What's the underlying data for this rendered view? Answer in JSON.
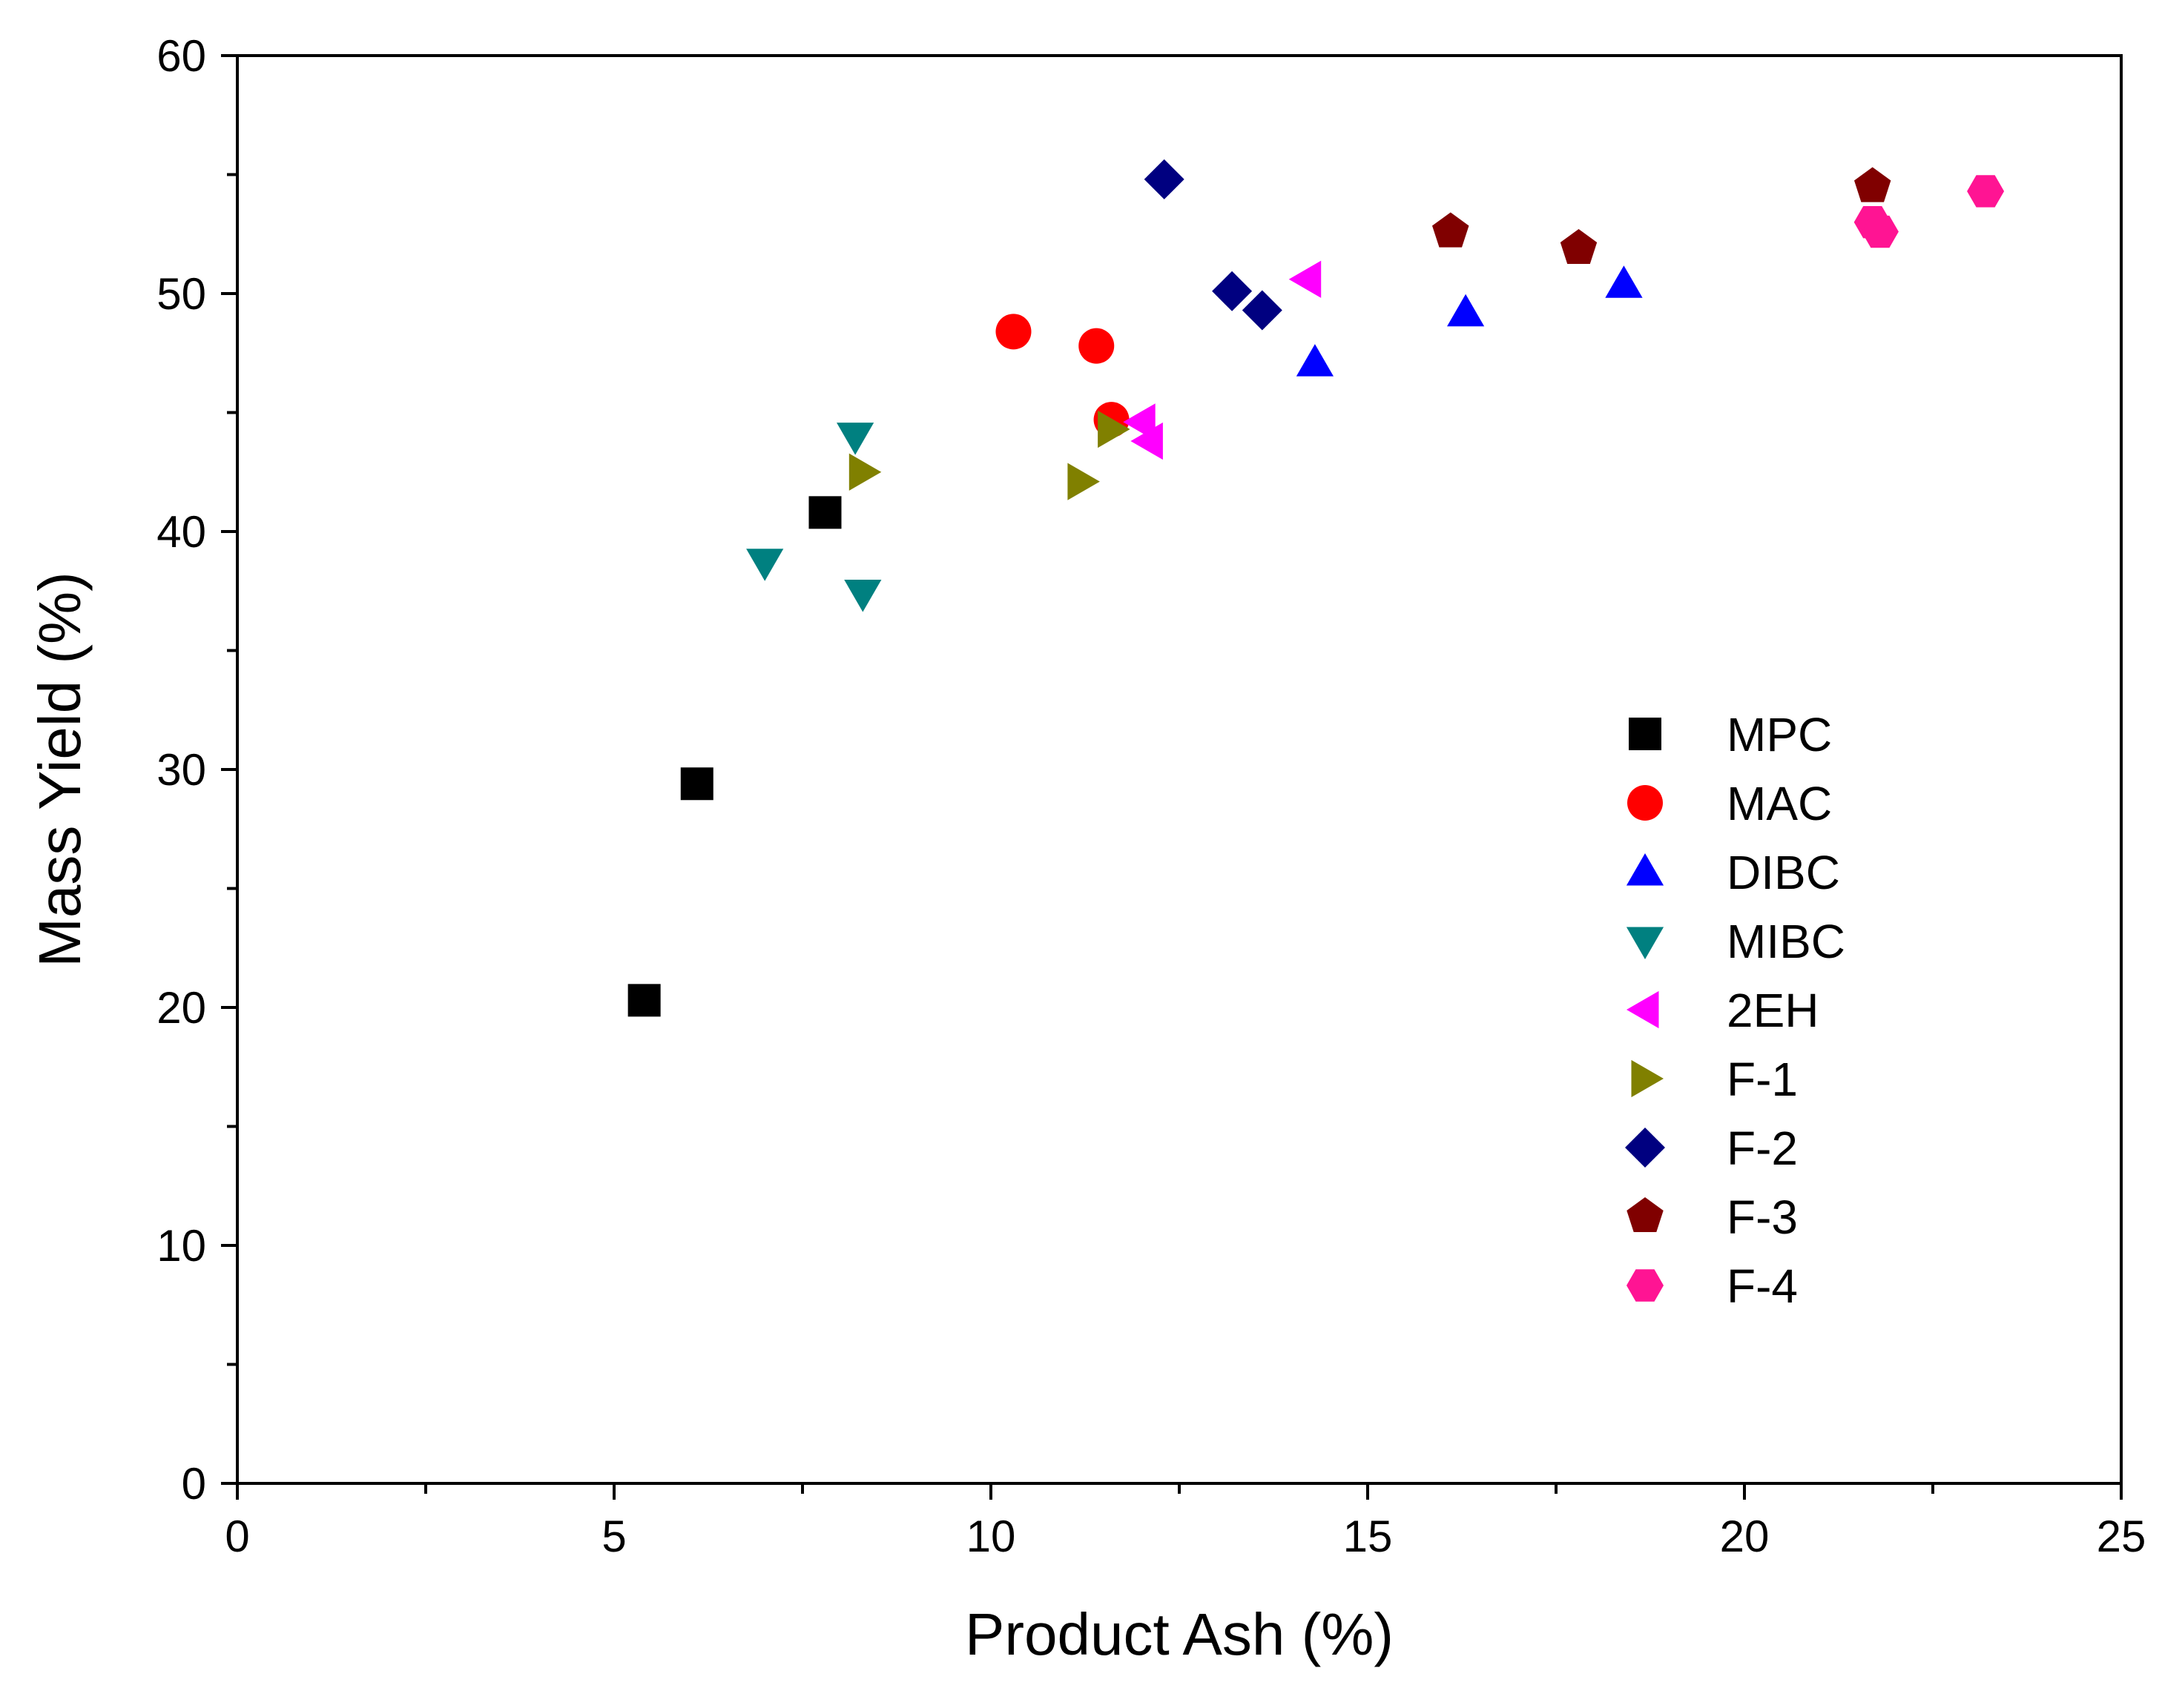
{
  "chart_data": {
    "type": "scatter",
    "title": "",
    "xlabel": "Product Ash (%)",
    "ylabel": "Mass Yield (%)",
    "xlim": [
      0,
      25
    ],
    "ylim": [
      0,
      60
    ],
    "x_ticks": [
      0,
      5,
      10,
      15,
      20,
      25
    ],
    "x_tick_labels": [
      "0",
      "5",
      "10",
      "15",
      "20",
      "25"
    ],
    "y_ticks": [
      0,
      10,
      20,
      30,
      40,
      50,
      60
    ],
    "y_tick_labels": [
      "0",
      "10",
      "20",
      "30",
      "40",
      "50",
      "60"
    ],
    "grid": false,
    "legend_position": "right",
    "series": [
      {
        "name": "MPC",
        "marker": "square",
        "color": "#000000",
        "points": [
          [
            5.4,
            20.3
          ],
          [
            6.1,
            29.4
          ],
          [
            7.8,
            40.8
          ]
        ]
      },
      {
        "name": "MAC",
        "marker": "circle",
        "color": "#ff0000",
        "points": [
          [
            10.3,
            48.4
          ],
          [
            11.4,
            47.8
          ],
          [
            11.6,
            44.7
          ]
        ]
      },
      {
        "name": "DIBC",
        "marker": "triangle-up",
        "color": "#0000ff",
        "points": [
          [
            14.3,
            47.1
          ],
          [
            16.3,
            49.2
          ],
          [
            18.4,
            50.4
          ]
        ]
      },
      {
        "name": "MIBC",
        "marker": "triangle-down",
        "color": "#008080",
        "points": [
          [
            7.0,
            38.7
          ],
          [
            8.2,
            44.0
          ],
          [
            8.3,
            37.4
          ]
        ]
      },
      {
        "name": "2EH",
        "marker": "triangle-left",
        "color": "#ff00ff",
        "points": [
          [
            12.0,
            44.6
          ],
          [
            12.1,
            43.8
          ],
          [
            14.2,
            50.6
          ]
        ]
      },
      {
        "name": "F-1",
        "marker": "triangle-right",
        "color": "#808000",
        "points": [
          [
            8.3,
            42.5
          ],
          [
            11.2,
            42.1
          ],
          [
            11.6,
            44.3
          ]
        ]
      },
      {
        "name": "F-2",
        "marker": "diamond",
        "color": "#000080",
        "points": [
          [
            12.3,
            54.8
          ],
          [
            13.2,
            50.1
          ],
          [
            13.6,
            49.3
          ]
        ]
      },
      {
        "name": "F-3",
        "marker": "pentagon",
        "color": "#800000",
        "points": [
          [
            16.1,
            52.6
          ],
          [
            17.8,
            51.9
          ],
          [
            21.7,
            54.5
          ]
        ]
      },
      {
        "name": "F-4",
        "marker": "hexagon",
        "color": "#ff1493",
        "points": [
          [
            21.7,
            53.0
          ],
          [
            21.8,
            52.6
          ],
          [
            23.2,
            54.3
          ]
        ]
      }
    ]
  }
}
